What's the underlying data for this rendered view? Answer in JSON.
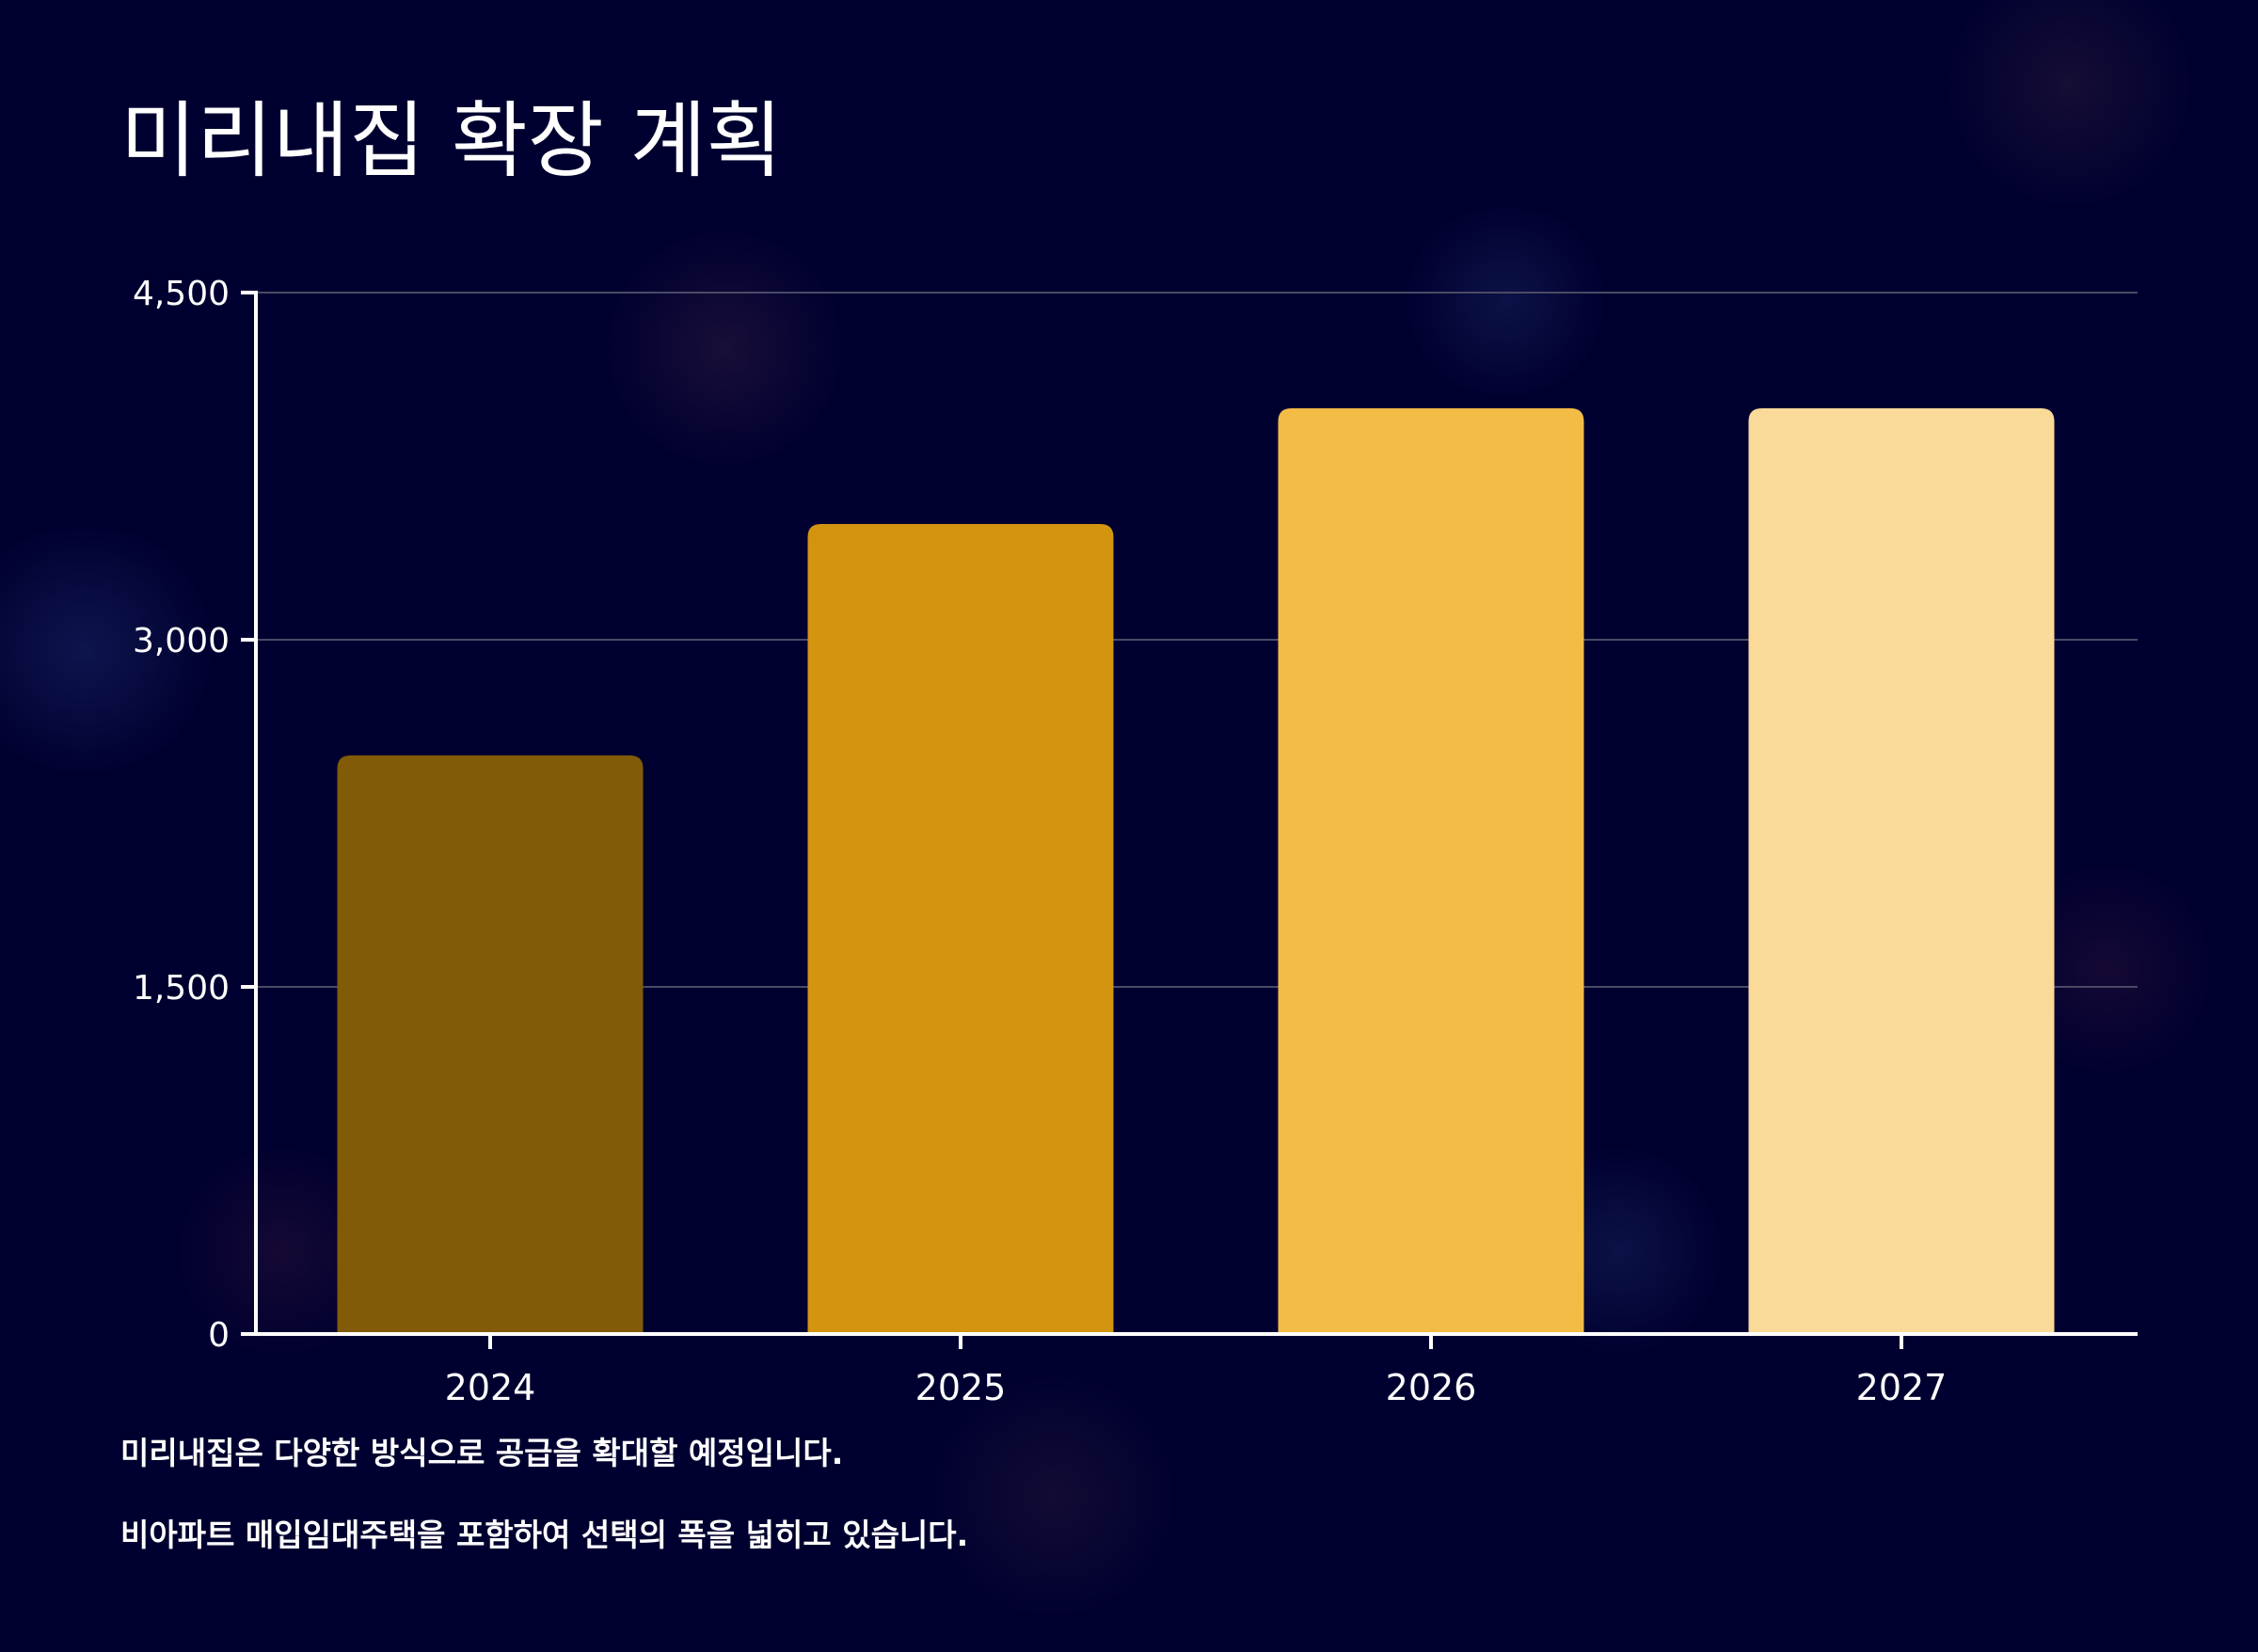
{
  "chart_data": {
    "type": "bar",
    "title": "미리내집 확장 계획",
    "categories": [
      "2024",
      "2025",
      "2026",
      "2027"
    ],
    "values": [
      2500,
      3500,
      4000,
      4000
    ],
    "ylim": [
      0,
      4500
    ],
    "yticks": [
      0,
      1500,
      3000,
      4500
    ],
    "ytick_labels": [
      "0",
      "1,500",
      "3,000",
      "4,500"
    ],
    "xlabel": "",
    "ylabel": "",
    "grid": true,
    "bar_colors": [
      "#815b07",
      "#d3950f",
      "#f3bc46",
      "#f9da98"
    ]
  },
  "notes": [
    "미리내집은 다양한 방식으로 공급을 확대할 예정입니다.",
    "비아파트 매입임대주택을 포함하여 선택의 폭을 넓히고 있습니다."
  ],
  "colors": {
    "background": "#000030",
    "text": "#ffffff",
    "grid": "#4a4a66"
  }
}
